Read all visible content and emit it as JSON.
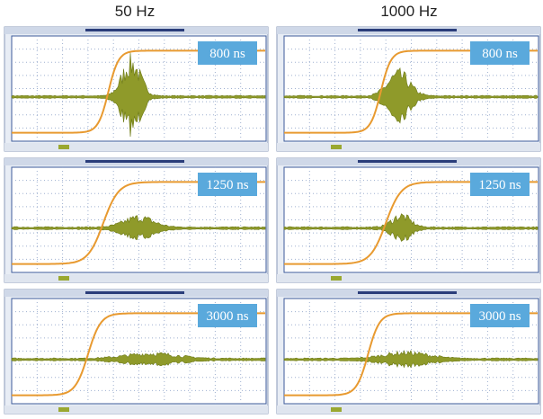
{
  "columns": [
    "50 Hz",
    "1000 Hz"
  ],
  "panels": [
    {
      "label": "800 ns"
    },
    {
      "label": "800 ns"
    },
    {
      "label": "1250 ns"
    },
    {
      "label": "1250 ns"
    },
    {
      "label": "3000 ns"
    },
    {
      "label": "3000 ns"
    }
  ]
}
